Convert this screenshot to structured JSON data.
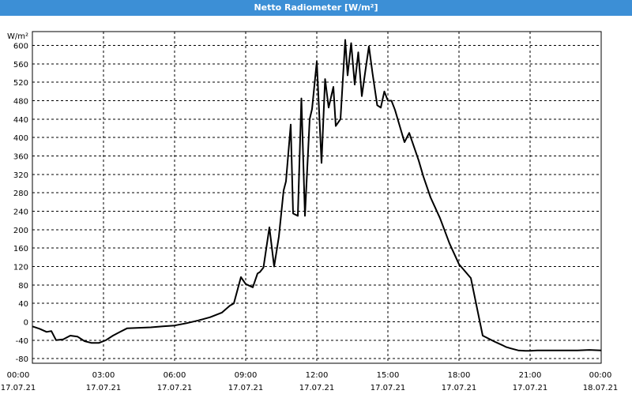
{
  "window": {
    "title": "Netto Radiometer [W/m²]"
  },
  "chart_data": {
    "type": "line",
    "title": "Netto Radiometer [W/m²]",
    "ylabel": "W/m²",
    "xlabel": "",
    "ylim": [
      -90,
      630
    ],
    "y_ticks": [
      600,
      560,
      520,
      480,
      440,
      400,
      360,
      320,
      280,
      240,
      200,
      160,
      120,
      80,
      40,
      0,
      -40,
      -80
    ],
    "x_ticks": [
      {
        "time": "00:00",
        "date": "17.07.21"
      },
      {
        "time": "03:00",
        "date": "17.07.21"
      },
      {
        "time": "06:00",
        "date": "17.07.21"
      },
      {
        "time": "09:00",
        "date": "17.07.21"
      },
      {
        "time": "12:00",
        "date": "17.07.21"
      },
      {
        "time": "15:00",
        "date": "17.07.21"
      },
      {
        "time": "18:00",
        "date": "17.07.21"
      },
      {
        "time": "21:00",
        "date": "17.07.21"
      },
      {
        "time": "00:00",
        "date": "18.07.21"
      }
    ],
    "x_unit": "hours since 00:00 17.07.21",
    "grid": true,
    "line_color": "#000000",
    "series": [
      {
        "name": "",
        "x": [
          0,
          0.3,
          0.6,
          0.8,
          1.0,
          1.3,
          1.6,
          1.9,
          2.2,
          2.5,
          2.8,
          3.1,
          3.4,
          3.7,
          4.0,
          4.5,
          5.0,
          5.5,
          6.0,
          6.5,
          7.0,
          7.5,
          8.0,
          8.33,
          8.5,
          8.8,
          9.0,
          9.3,
          9.5,
          9.6,
          9.75,
          10.0,
          10.2,
          10.4,
          10.6,
          10.7,
          10.9,
          11.0,
          11.2,
          11.35,
          11.5,
          11.7,
          11.8,
          12.0,
          12.2,
          12.35,
          12.5,
          12.7,
          12.8,
          13.0,
          13.2,
          13.3,
          13.45,
          13.6,
          13.75,
          13.9,
          14.05,
          14.2,
          14.35,
          14.55,
          14.7,
          14.85,
          15.0,
          15.15,
          15.3,
          15.5,
          15.7,
          15.9,
          16.1,
          16.3,
          16.5,
          16.8,
          17.2,
          17.6,
          18.0,
          18.5,
          19.0,
          19.5,
          19.8,
          20.0,
          20.2,
          20.5,
          20.8,
          21.0,
          21.3,
          21.5,
          22.0,
          22.5,
          23.0,
          23.5,
          24.0
        ],
        "values": [
          -10,
          -15,
          -22,
          -20,
          -40,
          -38,
          -30,
          -32,
          -42,
          -46,
          -46,
          -40,
          -30,
          -22,
          -14,
          -13,
          -12,
          -10,
          -8,
          -3,
          3,
          10,
          20,
          35,
          40,
          97,
          82,
          75,
          105,
          108,
          118,
          205,
          120,
          185,
          285,
          305,
          428,
          235,
          230,
          485,
          230,
          440,
          462,
          565,
          345,
          527,
          465,
          510,
          425,
          440,
          612,
          535,
          605,
          515,
          585,
          490,
          545,
          598,
          540,
          470,
          465,
          500,
          480,
          480,
          460,
          425,
          390,
          410,
          380,
          350,
          315,
          270,
          225,
          170,
          125,
          95,
          -30,
          -43,
          -50,
          -55,
          -58,
          -62,
          -63,
          -63,
          -62,
          -62,
          -62,
          -62,
          -62,
          -61,
          -62
        ]
      }
    ]
  }
}
